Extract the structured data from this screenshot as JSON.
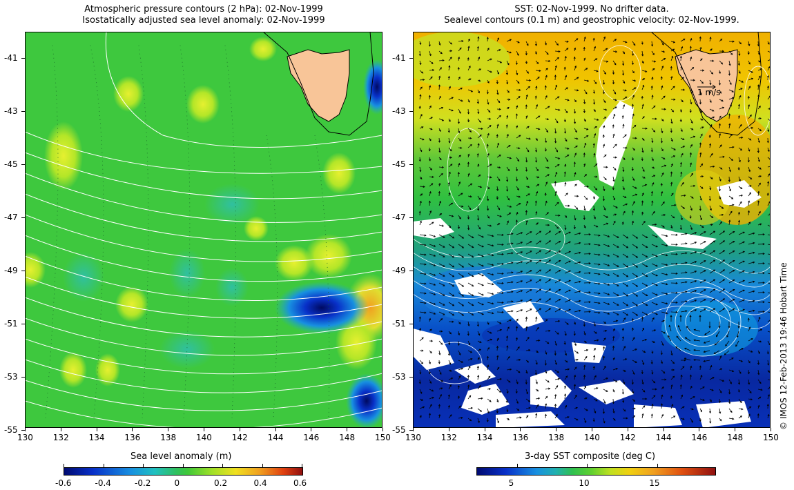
{
  "left_panel": {
    "title_line1": "Atmospheric pressure contours (2 hPa): 02-Nov-1999",
    "title_line2": "Isostatically adjusted sea level anomaly: 02-Nov-1999",
    "colorbar_label": "Sea level anomaly (m)",
    "colorbar_ticks": [
      "-0.6",
      "-0.4",
      "-0.2",
      "0",
      "0.2",
      "0.4",
      "0.6"
    ]
  },
  "right_panel": {
    "title_line1": "SST: 02-Nov-1999. No drifter data.",
    "title_line2": "Sealevel contours (0.1 m) and geostrophic velocity: 02-Nov-1999.",
    "colorbar_label": "3-day SST composite (deg C)",
    "colorbar_ticks": [
      "5",
      "10",
      "15"
    ],
    "velocity_scale_label": "1 m/s"
  },
  "credit": "© IMOS 12-Feb-2013 19:46 Hobart Time",
  "axes": {
    "lat_ticks": [
      "-41",
      "-43",
      "-45",
      "-47",
      "-49",
      "-51",
      "-53",
      "-55"
    ],
    "lon_ticks": [
      "130",
      "132",
      "134",
      "136",
      "138",
      "140",
      "142",
      "144",
      "146",
      "148",
      "150"
    ]
  },
  "colors": {
    "land": "#f8c598",
    "anomaly_background": "#3ec83e",
    "sst_warm": "#f0b400",
    "sst_cold": "#1030b0",
    "cloud": "#ffffff"
  }
}
